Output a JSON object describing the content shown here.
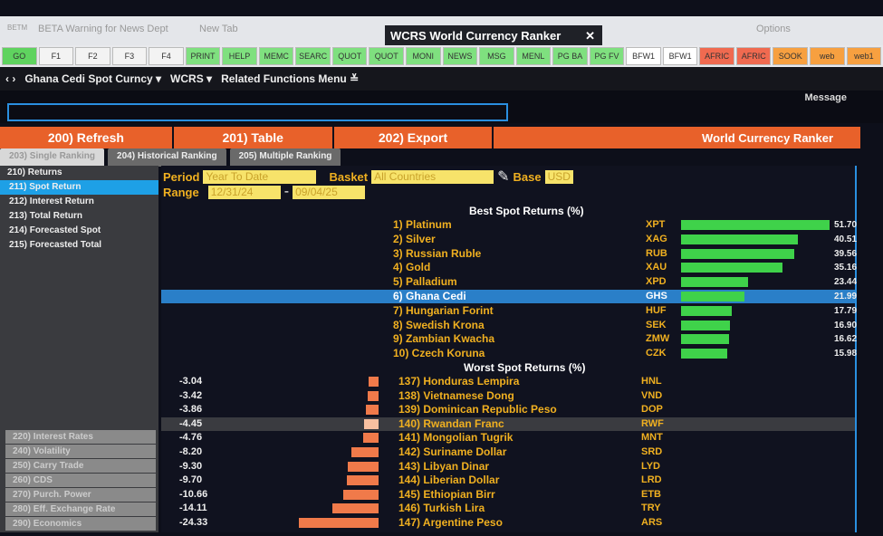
{
  "window": {
    "tabs": [
      "BETA Warning for News Dept",
      "New Tab"
    ],
    "brand": "BETM",
    "active_tab": "WCRS World Currency Ranker",
    "options": "Options"
  },
  "toolbar": [
    "GO",
    "F1",
    "F2",
    "F3",
    "F4",
    "PRINT",
    "HELP",
    "MEMC",
    "SEARC",
    "QUOT",
    "QUOT",
    "MONI",
    "NEWS",
    "MSG",
    "MENL",
    "PG BA",
    "PG FV",
    "BFW1",
    "BFW1",
    "AFRIC",
    "AFRIC",
    "SOOK",
    "web",
    "web1"
  ],
  "nav": {
    "security": "Ghana Cedi Spot Curncy ▾",
    "function": "WCRS ▾",
    "related": "Related Functions Menu ≚"
  },
  "message": "Message",
  "actions": {
    "refresh": "200) Refresh",
    "table": "201) Table",
    "export": "202) Export",
    "title": "World Currency Ranker"
  },
  "subtabs": [
    "203) Single Ranking",
    "204) Historical Ranking",
    "205) Multiple Ranking"
  ],
  "sidebar": {
    "top": [
      "210) Returns",
      "211) Spot Return",
      "212) Interest Return",
      "213) Total Return",
      "214) Forecasted Spot",
      "215) Forecasted Total"
    ],
    "bottom": [
      "220) Interest Rates",
      "240) Volatility",
      "250) Carry Trade",
      "260) CDS",
      "270) Purch. Power",
      "280) Eff. Exchange Rate",
      "290) Economics"
    ]
  },
  "filters": {
    "period_label": "Period",
    "period": "Year To Date",
    "basket_label": "Basket",
    "basket": "All Countries",
    "base_label": "Base",
    "base": "USD",
    "range_label": "Range",
    "range_from": "12/31/24",
    "range_to": "09/04/25"
  },
  "best": {
    "title": "Best Spot Returns (%)",
    "color": "#3fd24a",
    "rows": [
      {
        "rank": "1)",
        "name": "Platinum",
        "code": "XPT",
        "value": 51.7
      },
      {
        "rank": "2)",
        "name": "Silver",
        "code": "XAG",
        "value": 40.51
      },
      {
        "rank": "3)",
        "name": "Russian Ruble",
        "code": "RUB",
        "value": 39.56
      },
      {
        "rank": "4)",
        "name": "Gold",
        "code": "XAU",
        "value": 35.16
      },
      {
        "rank": "5)",
        "name": "Palladium",
        "code": "XPD",
        "value": 23.44
      },
      {
        "rank": "6)",
        "name": "Ghana Cedi",
        "code": "GHS",
        "value": 21.99,
        "selected": true
      },
      {
        "rank": "7)",
        "name": "Hungarian Forint",
        "code": "HUF",
        "value": 17.79
      },
      {
        "rank": "8)",
        "name": "Swedish Krona",
        "code": "SEK",
        "value": 16.9
      },
      {
        "rank": "9)",
        "name": "Zambian Kwacha",
        "code": "ZMW",
        "value": 16.62
      },
      {
        "rank": "10)",
        "name": "Czech Koruna",
        "code": "CZK",
        "value": 15.98
      }
    ]
  },
  "worst": {
    "title": "Worst Spot Returns (%)",
    "color": "#f07a4a",
    "rows": [
      {
        "rank": "137)",
        "name": "Honduras Lempira",
        "code": "HNL",
        "value": -3.04
      },
      {
        "rank": "138)",
        "name": "Vietnamese Dong",
        "code": "VND",
        "value": -3.42
      },
      {
        "rank": "139)",
        "name": "Dominican Republic Peso",
        "code": "DOP",
        "value": -3.86
      },
      {
        "rank": "140)",
        "name": "Rwandan Franc",
        "code": "RWF",
        "value": -4.45,
        "highlight": true
      },
      {
        "rank": "141)",
        "name": "Mongolian Tugrik",
        "code": "MNT",
        "value": -4.76
      },
      {
        "rank": "142)",
        "name": "Suriname Dollar",
        "code": "SRD",
        "value": -8.2
      },
      {
        "rank": "143)",
        "name": "Libyan Dinar",
        "code": "LYD",
        "value": -9.3
      },
      {
        "rank": "144)",
        "name": "Liberian Dollar",
        "code": "LRD",
        "value": -9.7
      },
      {
        "rank": "145)",
        "name": "Ethiopian Birr",
        "code": "ETB",
        "value": -10.66
      },
      {
        "rank": "146)",
        "name": "Turkish Lira",
        "code": "TRY",
        "value": -14.11
      },
      {
        "rank": "147)",
        "name": "Argentine Peso",
        "code": "ARS",
        "value": -24.33
      }
    ]
  }
}
